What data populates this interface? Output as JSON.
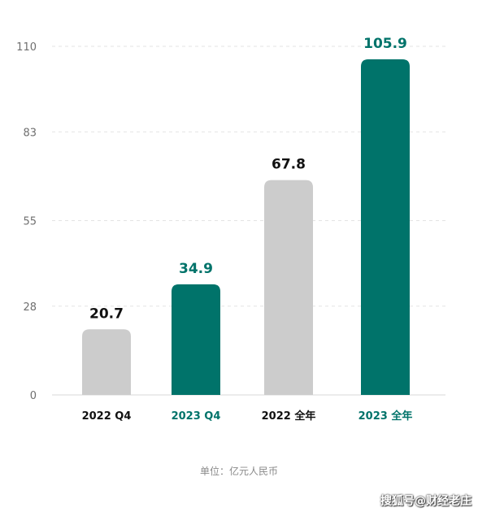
{
  "chart_data": {
    "type": "bar",
    "categories": [
      "2022 Q4",
      "2023 Q4",
      "2022 全年",
      "2023 全年"
    ],
    "values": [
      20.7,
      34.9,
      67.8,
      105.9
    ],
    "bar_colors": [
      "#cccccc",
      "#00736a",
      "#cccccc",
      "#00736a"
    ],
    "label_colors": [
      "#111111",
      "#00736a",
      "#111111",
      "#00736a"
    ],
    "yticks": [
      0,
      28,
      55,
      83,
      110
    ],
    "ylim": [
      0,
      110
    ],
    "grid": true,
    "title": "",
    "xlabel": "",
    "ylabel": ""
  },
  "unit_note": "单位：亿元人民币",
  "watermark": "搜狐号@财经老庄",
  "colors": {
    "accent": "#00736a",
    "neutral_bar": "#cccccc",
    "grid": "#e3e3e3",
    "axis": "#d8d8d8"
  }
}
